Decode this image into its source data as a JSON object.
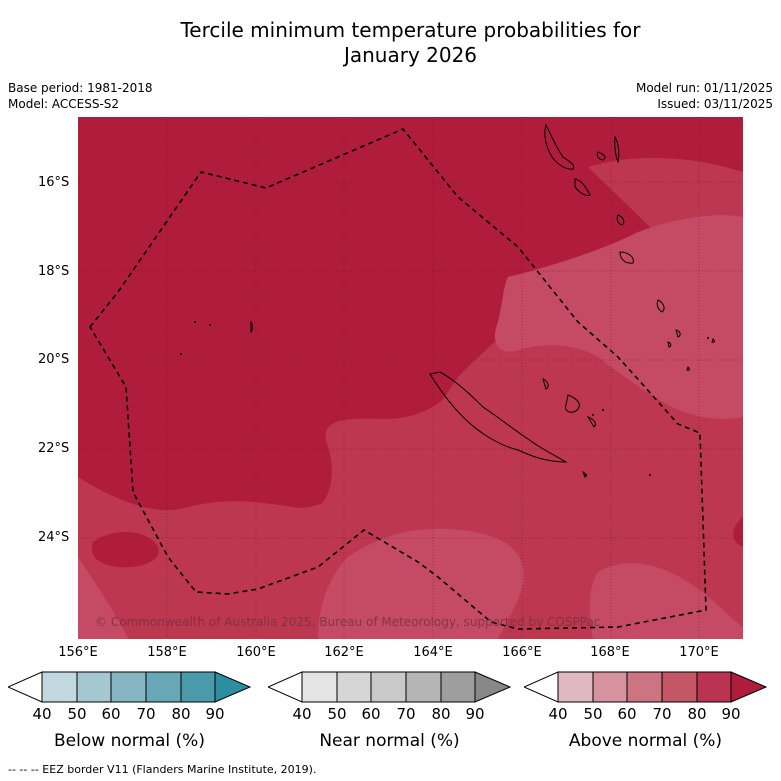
{
  "title_line1": "Tercile minimum temperature probabilities for",
  "title_line2": "January 2026",
  "meta": {
    "base_period": "Base period: 1981-2018",
    "model": "Model: ACCESS-S2",
    "model_run": "Model run: 01/11/2025",
    "issued": "Issued: 03/11/2025"
  },
  "map": {
    "lat_labels": [
      "16°S",
      "18°S",
      "20°S",
      "22°S",
      "24°S"
    ],
    "lon_labels": [
      "156°E",
      "158°E",
      "160°E",
      "162°E",
      "164°E",
      "166°E",
      "168°E",
      "170°E"
    ],
    "copyright": "© Commonwealth of Australia 2025, Bureau of Meteorology, supported by COSPPac",
    "colors": {
      "above_90": "#b01c3b",
      "above_80": "#bd3751",
      "above_70": "#c44b63",
      "land_outline": "#000000",
      "eez_line": "#000000"
    }
  },
  "legend": {
    "ticks": [
      "40",
      "50",
      "60",
      "70",
      "80",
      "90"
    ],
    "below": {
      "title": "Below normal (%)",
      "colors": [
        "#ffffff",
        "#c2d7df",
        "#a5c7cf",
        "#86b5c2",
        "#68a7b6",
        "#4a9aac",
        "#2b8ea3"
      ]
    },
    "near": {
      "title": "Near normal (%)",
      "colors": [
        "#ffffff",
        "#e4e4e4",
        "#d6d6d6",
        "#c9c9c9",
        "#b5b5b5",
        "#9e9e9e",
        "#888888"
      ]
    },
    "above": {
      "title": "Above normal (%)",
      "colors": [
        "#ffffff",
        "#e0b8c1",
        "#d6929f",
        "#cc7482",
        "#c25566",
        "#ba3350",
        "#b01c3b"
      ]
    }
  },
  "footer": "-- -- -- EEZ border V11 (Flanders Marine Institute, 2019)."
}
